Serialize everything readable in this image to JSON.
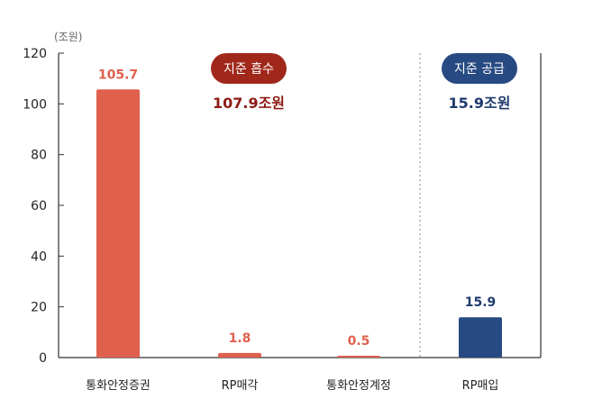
{
  "chart_data": {
    "type": "bar",
    "unit_label": "(조원)",
    "categories": [
      "통화안정증권",
      "RP매각",
      "통화안정계정",
      "RP매입"
    ],
    "values": [
      105.7,
      1.8,
      0.5,
      15.9
    ],
    "value_labels": [
      "105.7",
      "1.8",
      "0.5",
      "15.9"
    ],
    "bar_colors": [
      "#e0604e",
      "#e0604e",
      "#e0604e",
      "#284a82"
    ],
    "label_colors": [
      "#e0604e",
      "#e0604e",
      "#e0604e",
      "#1f3a6e"
    ],
    "ylim": [
      0,
      120
    ],
    "yticks": [
      0,
      20,
      40,
      60,
      80,
      100,
      120
    ],
    "grid": false,
    "groups": [
      {
        "badge": "지준 흡수",
        "total": "107.9조원",
        "badge_color": "#a0281a",
        "total_color": "#8b1c14"
      },
      {
        "badge": "지준 공급",
        "total": "15.9조원",
        "badge_color": "#284a82",
        "total_color": "#1f3a6e"
      }
    ]
  }
}
